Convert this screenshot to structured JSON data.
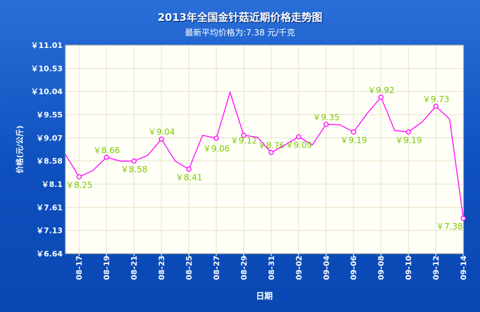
{
  "chart_data": {
    "type": "line",
    "title": "2013年全国金针菇近期价格走势图",
    "subtitle": "最新平均价格为:7.38 元/千克",
    "xlabel": "日期",
    "ylabel": "价格(元/公斤)",
    "y_ticks": [
      "￥11.01",
      "￥10.53",
      "￥10.04",
      "￥9.55",
      "￥9.07",
      "￥8.58",
      "￥8.1",
      "￥7.61",
      "￥7.13",
      "￥6.64"
    ],
    "ylim": [
      6.64,
      11.01
    ],
    "x_tick_labels": [
      "08-17",
      "08-19",
      "08-21",
      "08-23",
      "08-25",
      "08-27",
      "08-29",
      "08-31",
      "09-02",
      "09-04",
      "09-06",
      "09-08",
      "09-10",
      "09-12",
      "09-14"
    ],
    "x": [
      "08-16",
      "08-17",
      "08-18",
      "08-19",
      "08-20",
      "08-21",
      "08-22",
      "08-23",
      "08-24",
      "08-25",
      "08-26",
      "08-27",
      "08-28",
      "08-29",
      "08-30",
      "08-31",
      "09-01",
      "09-02",
      "09-03",
      "09-04",
      "09-05",
      "09-06",
      "09-07",
      "09-08",
      "09-09",
      "09-10",
      "09-11",
      "09-12",
      "09-13",
      "09-14"
    ],
    "values": [
      8.72,
      8.25,
      8.38,
      8.66,
      8.58,
      8.58,
      8.7,
      9.04,
      8.58,
      8.41,
      9.12,
      9.06,
      10.02,
      9.12,
      9.08,
      8.76,
      8.92,
      9.09,
      8.92,
      9.35,
      9.34,
      9.19,
      9.58,
      9.92,
      9.22,
      9.19,
      9.4,
      9.73,
      9.46,
      7.38
    ],
    "labeled": [
      {
        "x": "08-17",
        "text": "￥8.25"
      },
      {
        "x": "08-19",
        "text": "￥8.66"
      },
      {
        "x": "08-21",
        "text": "￥8.58"
      },
      {
        "x": "08-23",
        "text": "￥9.04"
      },
      {
        "x": "08-25",
        "text": "￥8.41"
      },
      {
        "x": "08-27",
        "text": "￥9.06"
      },
      {
        "x": "08-29",
        "text": "￥9.12"
      },
      {
        "x": "08-31",
        "text": "￥8.76"
      },
      {
        "x": "09-02",
        "text": "￥9.09"
      },
      {
        "x": "09-04",
        "text": "￥9.35"
      },
      {
        "x": "09-06",
        "text": "￥9.19"
      },
      {
        "x": "09-08",
        "text": "￥9.92"
      },
      {
        "x": "09-10",
        "text": "￥9.19"
      },
      {
        "x": "09-12",
        "text": "￥9.73"
      },
      {
        "x": "09-14",
        "text": "￥7.38"
      }
    ],
    "grid": true,
    "colors": {
      "line": "#ff00ff",
      "label": "#7cc900",
      "plot_bg": "#fffff8",
      "grid": "#e6e1c4",
      "background": "#0d4fbd"
    }
  }
}
